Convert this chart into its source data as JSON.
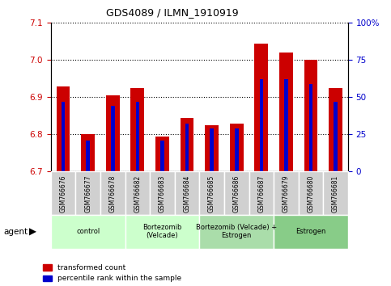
{
  "title": "GDS4089 / ILMN_1910919",
  "samples": [
    "GSM766676",
    "GSM766677",
    "GSM766678",
    "GSM766682",
    "GSM766683",
    "GSM766684",
    "GSM766685",
    "GSM766686",
    "GSM766687",
    "GSM766679",
    "GSM766680",
    "GSM766681"
  ],
  "red_values": [
    6.93,
    6.8,
    6.905,
    6.925,
    6.795,
    6.845,
    6.825,
    6.83,
    7.045,
    7.02,
    7.0,
    6.925
  ],
  "blue_percentiles": [
    47,
    21,
    44,
    47,
    21,
    32,
    29,
    29,
    62,
    62,
    59,
    47
  ],
  "ylim_left": [
    6.7,
    7.1
  ],
  "ylim_right": [
    0,
    100
  ],
  "yticks_left": [
    6.7,
    6.8,
    6.9,
    7.0,
    7.1
  ],
  "yticks_right": [
    0,
    25,
    50,
    75,
    100
  ],
  "ytick_labels_right": [
    "0",
    "25",
    "50",
    "75",
    "100%"
  ],
  "groups": [
    {
      "label": "control",
      "start": 0,
      "end": 3,
      "color": "#ccffcc"
    },
    {
      "label": "Bortezomib\n(Velcade)",
      "start": 3,
      "end": 6,
      "color": "#ccffcc"
    },
    {
      "label": "Bortezomib (Velcade) +\nEstrogen",
      "start": 6,
      "end": 9,
      "color": "#99ee99"
    },
    {
      "label": "Estrogen",
      "start": 9,
      "end": 12,
      "color": "#66dd66"
    }
  ],
  "agent_label": "agent",
  "legend_red": "transformed count",
  "legend_blue": "percentile rank within the sample",
  "base": 6.7,
  "red_color": "#cc0000",
  "blue_color": "#0000cc",
  "tick_color_left": "#cc0000",
  "tick_color_right": "#0000cc",
  "red_bar_width": 0.55,
  "blue_bar_width": 0.15
}
